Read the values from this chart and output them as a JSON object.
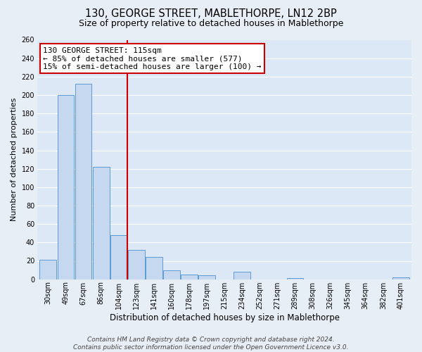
{
  "title": "130, GEORGE STREET, MABLETHORPE, LN12 2BP",
  "subtitle": "Size of property relative to detached houses in Mablethorpe",
  "xlabel": "Distribution of detached houses by size in Mablethorpe",
  "ylabel": "Number of detached properties",
  "bin_labels": [
    "30sqm",
    "49sqm",
    "67sqm",
    "86sqm",
    "104sqm",
    "123sqm",
    "141sqm",
    "160sqm",
    "178sqm",
    "197sqm",
    "215sqm",
    "234sqm",
    "252sqm",
    "271sqm",
    "289sqm",
    "308sqm",
    "326sqm",
    "345sqm",
    "364sqm",
    "382sqm",
    "401sqm"
  ],
  "bar_values": [
    21,
    200,
    212,
    122,
    48,
    32,
    24,
    10,
    5,
    4,
    0,
    8,
    0,
    0,
    1,
    0,
    0,
    0,
    0,
    0,
    2
  ],
  "bar_color": "#c5d8f0",
  "bar_edge_color": "#5b9bd5",
  "ylim": [
    0,
    260
  ],
  "yticks": [
    0,
    20,
    40,
    60,
    80,
    100,
    120,
    140,
    160,
    180,
    200,
    220,
    240,
    260
  ],
  "vline_x": 4.5,
  "vline_color": "#cc0000",
  "annotation_title": "130 GEORGE STREET: 115sqm",
  "annotation_line1": "← 85% of detached houses are smaller (577)",
  "annotation_line2": "15% of semi-detached houses are larger (100) →",
  "annotation_box_color": "#cc0000",
  "footer_line1": "Contains HM Land Registry data © Crown copyright and database right 2024.",
  "footer_line2": "Contains public sector information licensed under the Open Government Licence v3.0.",
  "fig_background_color": "#e8eef5",
  "axes_background_color": "#dce8f5",
  "grid_color": "#ffffff",
  "title_fontsize": 10.5,
  "subtitle_fontsize": 9,
  "xlabel_fontsize": 8.5,
  "ylabel_fontsize": 8,
  "tick_fontsize": 7,
  "annotation_fontsize": 8,
  "footer_fontsize": 6.5
}
